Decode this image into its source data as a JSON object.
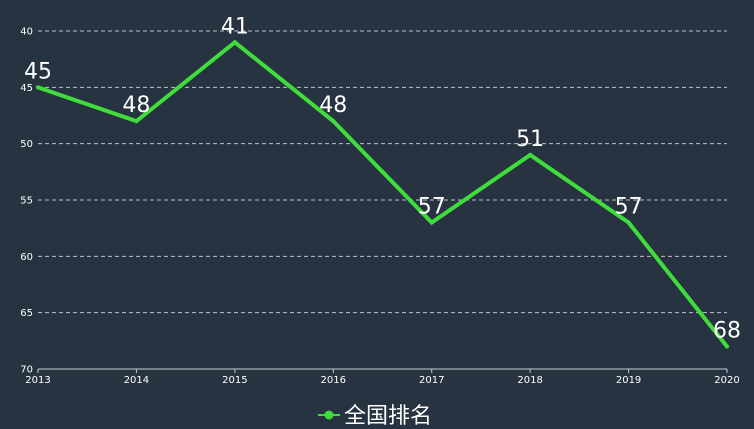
{
  "chart_data": {
    "type": "line",
    "x": [
      "2013",
      "2014",
      "2015",
      "2016",
      "2017",
      "2018",
      "2019",
      "2020"
    ],
    "series": [
      {
        "name": "全国排名",
        "values": [
          45,
          48,
          41,
          48,
          57,
          51,
          57,
          68
        ],
        "color": "#3fdc3b"
      }
    ],
    "y_ticks": [
      "40",
      "45",
      "50",
      "55",
      "60",
      "65",
      "70"
    ],
    "ylim": [
      40,
      70
    ],
    "y_inverted": true,
    "grid": true,
    "legend": {
      "position": "bottom-center"
    }
  },
  "colors": {
    "background": "#273340",
    "line": "#3fdc3b",
    "text": "#ffffff",
    "grid": "#d9dde2"
  }
}
